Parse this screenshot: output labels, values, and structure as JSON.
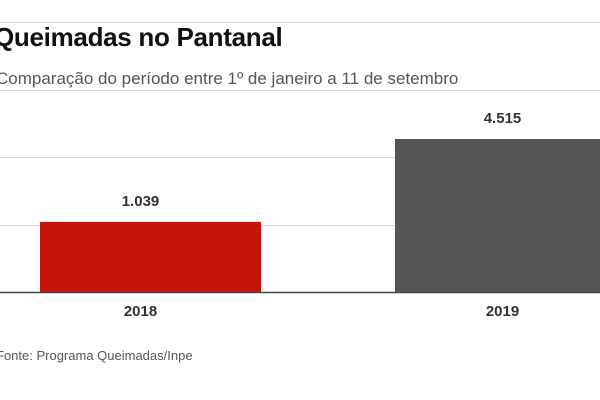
{
  "header": {
    "title": "Queimadas no Pantanal",
    "subtitle": "Comparação do período entre 1º de janeiro a 11 de setembro"
  },
  "footer": {
    "source": "Fonte: Programa Queimadas/Inpe"
  },
  "colors": {
    "bar_2018": "#c4140c",
    "bar_2019": "#555555",
    "grid": "#d9d9d9",
    "axis": "#444444",
    "label": "#333333"
  },
  "chart_data": {
    "type": "bar",
    "title": "Queimadas no Pantanal",
    "subtitle": "Comparação do período entre 1º de janeiro a 11 de setembro",
    "categories": [
      "2018",
      "2019"
    ],
    "values": [
      1039,
      4515
    ],
    "value_labels": [
      "1.039",
      "4.515"
    ],
    "xlabel": "",
    "ylabel": "",
    "ylim": [
      0,
      4000
    ],
    "grid": true,
    "gridlines": [
      0,
      1000,
      2000,
      3000,
      4000
    ]
  }
}
